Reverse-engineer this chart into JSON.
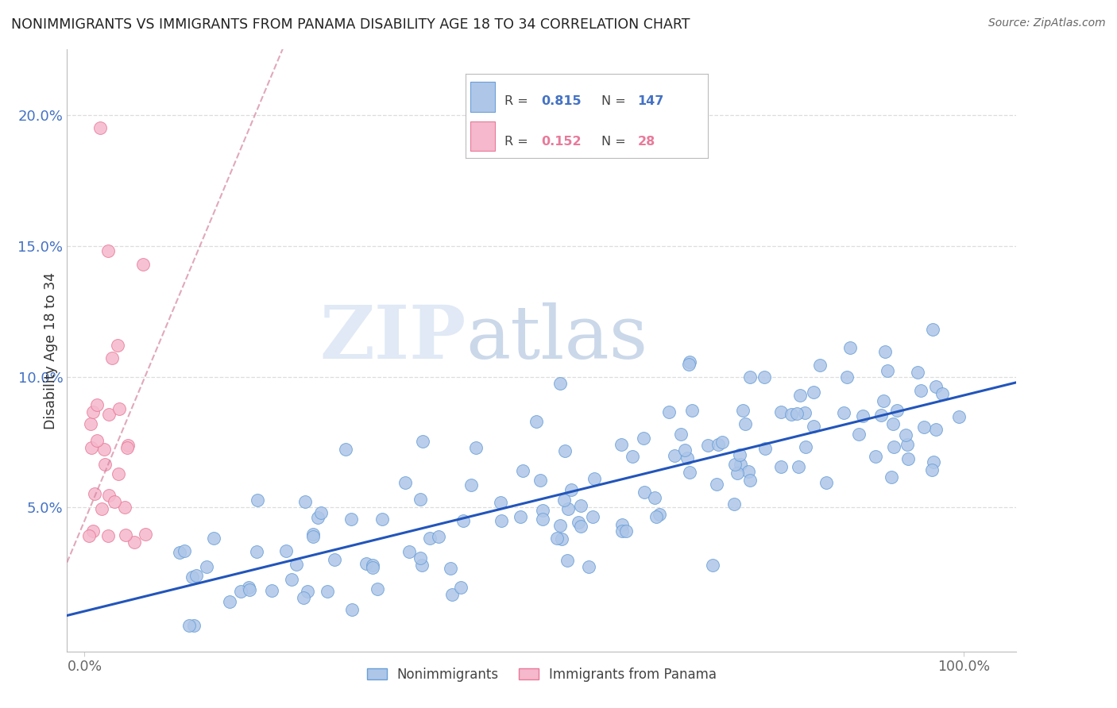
{
  "title": "NONIMMIGRANTS VS IMMIGRANTS FROM PANAMA DISABILITY AGE 18 TO 34 CORRELATION CHART",
  "source": "Source: ZipAtlas.com",
  "ylabel": "Disability Age 18 to 34",
  "watermark_zip": "ZIP",
  "watermark_atlas": "atlas",
  "blue_scatter_color": "#aec6e8",
  "blue_scatter_edge": "#6a9fd8",
  "pink_scatter_color": "#f5b8cc",
  "pink_scatter_edge": "#e87a9a",
  "blue_line_color": "#2255bb",
  "pink_line_color": "#d4849e",
  "ytick_color": "#4472c4",
  "xtick_color": "#666666",
  "title_color": "#222222",
  "source_color": "#666666",
  "grid_color": "#dddddd",
  "background_color": "#ffffff",
  "legend_R_blue": "0.815",
  "legend_N_blue": "147",
  "legend_R_pink": "0.152",
  "legend_N_pink": "28",
  "legend_label_blue": "Nonimmigrants",
  "legend_label_pink": "Immigrants from Panama",
  "xlim": [
    -0.02,
    1.06
  ],
  "ylim": [
    -0.005,
    0.225
  ],
  "yticks": [
    0.05,
    0.1,
    0.15,
    0.2
  ],
  "ytick_labels": [
    "5.0%",
    "10.0%",
    "15.0%",
    "20.0%"
  ],
  "xticks": [
    0.0,
    1.0
  ],
  "xtick_labels": [
    "0.0%",
    "100.0%"
  ]
}
